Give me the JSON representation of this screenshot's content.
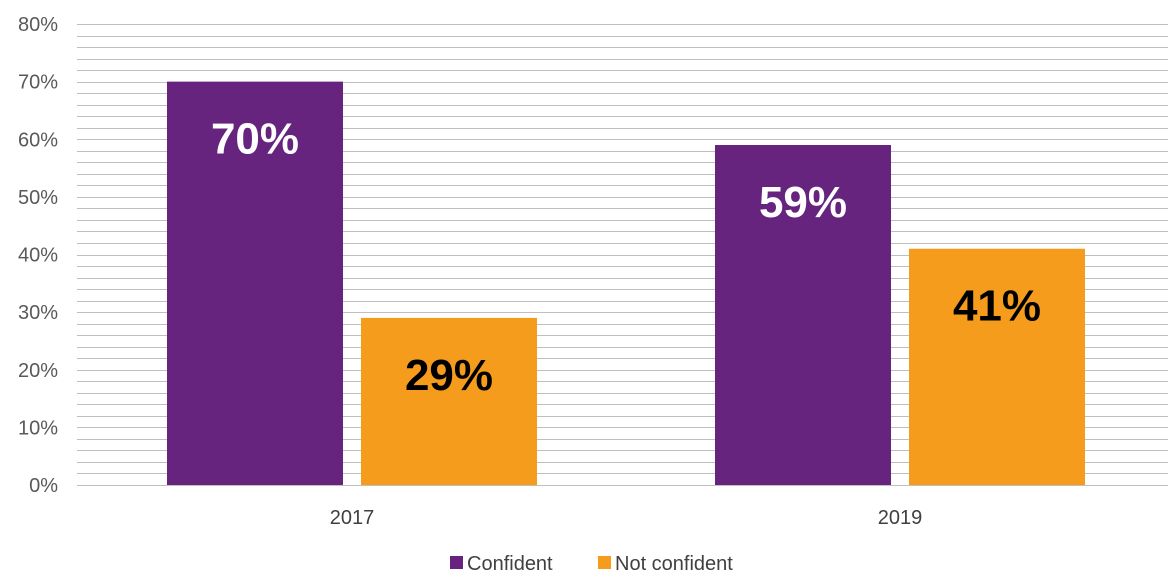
{
  "chart_data": {
    "type": "bar",
    "categories": [
      "2017",
      "2019"
    ],
    "series": [
      {
        "name": "Confident",
        "values": [
          70,
          59
        ],
        "labels": [
          "70%",
          "59%"
        ],
        "color": "#66247f",
        "label_color": "#ffffff"
      },
      {
        "name": "Not confident",
        "values": [
          29,
          41
        ],
        "labels": [
          "29%",
          "41%"
        ],
        "color": "#f59c1d",
        "label_color": "#000000"
      }
    ],
    "y_ticks": [
      "0%",
      "10%",
      "20%",
      "30%",
      "40%",
      "50%",
      "60%",
      "70%",
      "80%"
    ],
    "ylim": [
      0,
      80
    ],
    "minor_gridlines_per_major": 5,
    "grid": true,
    "legend_position": "bottom",
    "gridline_color": "#bfbfbf"
  }
}
